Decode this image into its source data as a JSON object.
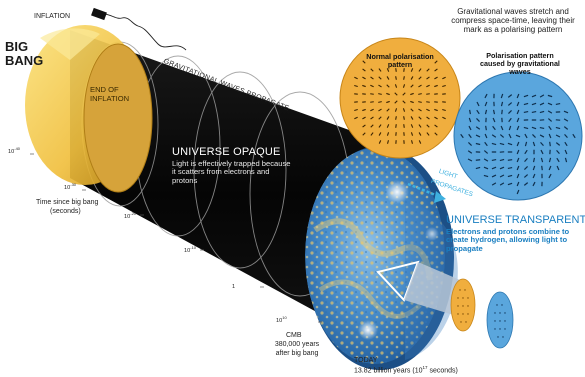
{
  "labels": {
    "inflation": "INFLATION",
    "big_bang_1": "BIG",
    "big_bang_2": "BANG",
    "end_of_inflation_1": "END OF",
    "end_of_inflation_2": "INFLATION",
    "gravitational_waves_propagate": "GRAVITATIONAL WAVES PROPAGATE",
    "universe_opaque": "UNIVERSE OPAQUE",
    "opaque_body": "Light is effectively trapped because it scatters from electrons and protons",
    "light_propagates_1": "LIGHT",
    "light_propagates_2": "PROPAGATES",
    "universe_transparent": "UNIVERSE TRANSPARENT",
    "transparent_body": "Electrons and protons combine to create hydrogen, allowing light to propagate",
    "time_axis_1": "Time since big bang",
    "time_axis_2": "(seconds)",
    "cmb_1": "CMB",
    "cmb_2": "380,000 years",
    "cmb_3": "after big bang",
    "today_1": "TODAY",
    "today_2_a": "13.82 billion years (10",
    "today_2_exp": "17",
    "today_2_b": " seconds)",
    "grav_note": "Gravitational waves stretch and compress space-time, leaving their mark as a polarising pattern",
    "normal_pattern": "Normal polarisation pattern",
    "grav_pattern": "Polarisation pattern caused by gravitational waves"
  },
  "time_ticks": [
    {
      "base": "10",
      "exp": "-40"
    },
    {
      "base": "10",
      "exp": "-30"
    },
    {
      "base": "10",
      "exp": "-20"
    },
    {
      "base": "10",
      "exp": "-10"
    },
    {
      "base": "1",
      "exp": ""
    },
    {
      "base": "10",
      "exp": "10"
    }
  ],
  "colors": {
    "inflation_yellow": "#f2c44a",
    "tube_dark": "#0b0b0b",
    "cmb_blue": "#3f86c6",
    "accent_blue": "#1a7fc1",
    "normal_disc": "#f0ae3e",
    "grav_disc": "#5aa6dd"
  }
}
